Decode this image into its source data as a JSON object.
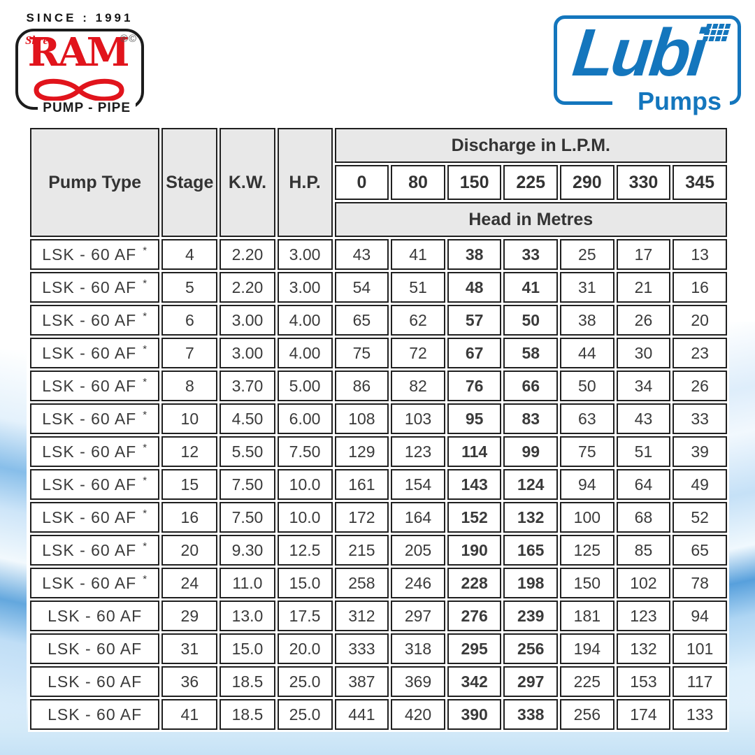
{
  "branding": {
    "ram": {
      "since": "SINCE : 1991",
      "shree": "Shree",
      "name": "RAM",
      "marks": "®©",
      "pump_pipe": "PUMP - PIPE",
      "red": "#e1141c"
    },
    "lubi": {
      "name": "Lubi",
      "pumps": "Pumps",
      "blue": "#1476bd"
    }
  },
  "table": {
    "columns": {
      "pump_type": "Pump Type",
      "stage": "Stage",
      "kw": "K.W.",
      "hp": "H.P."
    },
    "discharge_header": "Discharge in L.P.M.",
    "head_header": "Head in Metres",
    "discharge_values": [
      "0",
      "80",
      "150",
      "225",
      "290",
      "330",
      "345"
    ],
    "bold_columns": [
      2,
      3
    ],
    "asterisk_symbol": "*",
    "rows": [
      {
        "pump_type": "LSK - 60 AF",
        "asterisk": true,
        "stage": "4",
        "kw": "2.20",
        "hp": "3.00",
        "heads": [
          "43",
          "41",
          "38",
          "33",
          "25",
          "17",
          "13"
        ]
      },
      {
        "pump_type": "LSK - 60 AF",
        "asterisk": true,
        "stage": "5",
        "kw": "2.20",
        "hp": "3.00",
        "heads": [
          "54",
          "51",
          "48",
          "41",
          "31",
          "21",
          "16"
        ]
      },
      {
        "pump_type": "LSK - 60 AF",
        "asterisk": true,
        "stage": "6",
        "kw": "3.00",
        "hp": "4.00",
        "heads": [
          "65",
          "62",
          "57",
          "50",
          "38",
          "26",
          "20"
        ]
      },
      {
        "pump_type": "LSK - 60 AF",
        "asterisk": true,
        "stage": "7",
        "kw": "3.00",
        "hp": "4.00",
        "heads": [
          "75",
          "72",
          "67",
          "58",
          "44",
          "30",
          "23"
        ]
      },
      {
        "pump_type": "LSK - 60 AF",
        "asterisk": true,
        "stage": "8",
        "kw": "3.70",
        "hp": "5.00",
        "heads": [
          "86",
          "82",
          "76",
          "66",
          "50",
          "34",
          "26"
        ]
      },
      {
        "pump_type": "LSK - 60 AF",
        "asterisk": true,
        "stage": "10",
        "kw": "4.50",
        "hp": "6.00",
        "heads": [
          "108",
          "103",
          "95",
          "83",
          "63",
          "43",
          "33"
        ]
      },
      {
        "pump_type": "LSK - 60 AF",
        "asterisk": true,
        "stage": "12",
        "kw": "5.50",
        "hp": "7.50",
        "heads": [
          "129",
          "123",
          "114",
          "99",
          "75",
          "51",
          "39"
        ]
      },
      {
        "pump_type": "LSK - 60 AF",
        "asterisk": true,
        "stage": "15",
        "kw": "7.50",
        "hp": "10.0",
        "heads": [
          "161",
          "154",
          "143",
          "124",
          "94",
          "64",
          "49"
        ]
      },
      {
        "pump_type": "LSK - 60 AF",
        "asterisk": true,
        "stage": "16",
        "kw": "7.50",
        "hp": "10.0",
        "heads": [
          "172",
          "164",
          "152",
          "132",
          "100",
          "68",
          "52"
        ]
      },
      {
        "pump_type": "LSK - 60 AF",
        "asterisk": true,
        "stage": "20",
        "kw": "9.30",
        "hp": "12.5",
        "heads": [
          "215",
          "205",
          "190",
          "165",
          "125",
          "85",
          "65"
        ]
      },
      {
        "pump_type": "LSK - 60 AF",
        "asterisk": true,
        "stage": "24",
        "kw": "11.0",
        "hp": "15.0",
        "heads": [
          "258",
          "246",
          "228",
          "198",
          "150",
          "102",
          "78"
        ]
      },
      {
        "pump_type": "LSK - 60 AF",
        "asterisk": false,
        "stage": "29",
        "kw": "13.0",
        "hp": "17.5",
        "heads": [
          "312",
          "297",
          "276",
          "239",
          "181",
          "123",
          "94"
        ]
      },
      {
        "pump_type": "LSK - 60 AF",
        "asterisk": false,
        "stage": "31",
        "kw": "15.0",
        "hp": "20.0",
        "heads": [
          "333",
          "318",
          "295",
          "256",
          "194",
          "132",
          "101"
        ]
      },
      {
        "pump_type": "LSK - 60 AF",
        "asterisk": false,
        "stage": "36",
        "kw": "18.5",
        "hp": "25.0",
        "heads": [
          "387",
          "369",
          "342",
          "297",
          "225",
          "153",
          "117"
        ]
      },
      {
        "pump_type": "LSK - 60 AF",
        "asterisk": false,
        "stage": "41",
        "kw": "18.5",
        "hp": "25.0",
        "heads": [
          "441",
          "420",
          "390",
          "338",
          "256",
          "174",
          "133"
        ]
      }
    ]
  }
}
